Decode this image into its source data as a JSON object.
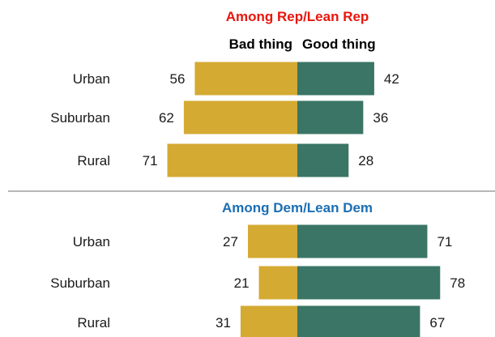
{
  "colors": {
    "bad": "#D4AA33",
    "good": "#3A7566",
    "rep_title": "#E8160C",
    "dem_title": "#1B6EB3",
    "divider": "#8C8C8C"
  },
  "column_headers": {
    "bad": "Bad thing",
    "good": "Good thing"
  },
  "chart_data": [
    {
      "type": "bar",
      "title": "Among Rep/Lean Rep",
      "categories": [
        "Urban",
        "Suburban",
        "Rural"
      ],
      "series": [
        {
          "name": "Bad thing",
          "values": [
            56,
            62,
            71
          ]
        },
        {
          "name": "Good thing",
          "values": [
            42,
            36,
            28
          ]
        }
      ]
    },
    {
      "type": "bar",
      "title": "Among Dem/Lean Dem",
      "categories": [
        "Urban",
        "Suburban",
        "Rural"
      ],
      "series": [
        {
          "name": "Bad thing",
          "values": [
            27,
            21,
            31
          ]
        },
        {
          "name": "Good thing",
          "values": [
            71,
            78,
            67
          ]
        }
      ]
    }
  ]
}
